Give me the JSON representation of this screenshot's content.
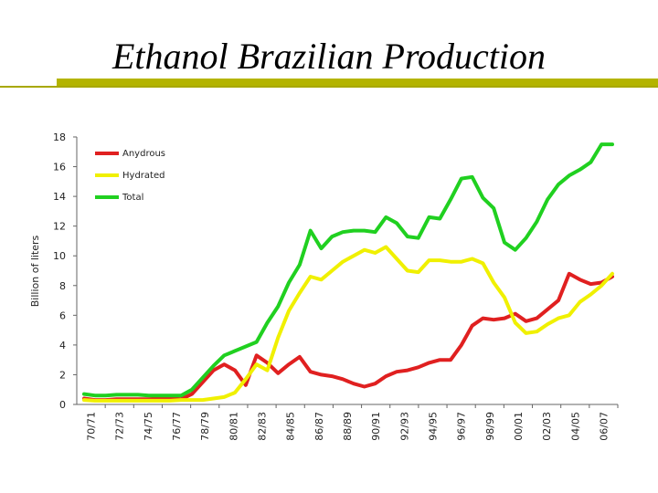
{
  "chart_data": {
    "type": "line",
    "title": "Ethanol Brazilian Production",
    "ylabel": "Billion of liters",
    "xlabel": "",
    "ylim": [
      0,
      18
    ],
    "yticks": [
      "0",
      "2",
      "4",
      "6",
      "8",
      "10",
      "12",
      "14",
      "16",
      "18"
    ],
    "xtick_labels": [
      "70/71",
      "72/73",
      "74/75",
      "76/77",
      "78/79",
      "80/81",
      "82/83",
      "84/85",
      "86/87",
      "88/89",
      "90/91",
      "92/93",
      "94/95",
      "96/97",
      "98/99",
      "00/01",
      "02/03",
      "04/05",
      "06/07"
    ],
    "grid": false,
    "legend_position": "top-left",
    "series": [
      {
        "name": "Anydrous",
        "color": "#e02020",
        "values": [
          0.4,
          0.3,
          0.3,
          0.35,
          0.35,
          0.35,
          0.35,
          0.4,
          0.4,
          0.35,
          0.7,
          1.5,
          2.3,
          2.7,
          2.3,
          1.3,
          3.3,
          2.8,
          2.1,
          2.7,
          3.2,
          2.2,
          2.0,
          1.9,
          1.7,
          1.4,
          1.2,
          1.4,
          1.9,
          2.2,
          2.3,
          2.5,
          2.8,
          3.0,
          3.0,
          4.0,
          5.3,
          5.8,
          5.7,
          5.8,
          6.1,
          5.6,
          5.8,
          6.4,
          7.0,
          8.8,
          8.4,
          8.1,
          8.2,
          8.6
        ]
      },
      {
        "name": "Hydrated",
        "color": "#f0f000",
        "values": [
          0.3,
          0.25,
          0.25,
          0.25,
          0.25,
          0.25,
          0.25,
          0.25,
          0.25,
          0.3,
          0.3,
          0.3,
          0.4,
          0.5,
          0.8,
          1.7,
          2.7,
          2.3,
          4.5,
          6.3,
          7.5,
          8.6,
          8.4,
          9.0,
          9.6,
          10.0,
          10.4,
          10.2,
          10.6,
          9.8,
          9.0,
          8.9,
          9.7,
          9.7,
          9.6,
          9.6,
          9.8,
          9.5,
          8.2,
          7.2,
          5.5,
          4.8,
          4.9,
          5.4,
          5.8,
          6.0,
          6.9,
          7.4,
          8.0,
          8.8
        ]
      },
      {
        "name": "Total",
        "color": "#20d020",
        "values": [
          0.7,
          0.6,
          0.6,
          0.65,
          0.65,
          0.65,
          0.6,
          0.6,
          0.6,
          0.6,
          1.0,
          1.8,
          2.6,
          3.3,
          3.6,
          3.9,
          4.2,
          5.5,
          6.6,
          8.2,
          9.4,
          11.7,
          10.5,
          11.3,
          11.6,
          11.7,
          11.7,
          11.6,
          12.6,
          12.2,
          11.3,
          11.2,
          12.6,
          12.5,
          13.8,
          15.2,
          15.3,
          13.9,
          13.2,
          10.9,
          10.4,
          11.2,
          12.3,
          13.8,
          14.8,
          15.4,
          15.8,
          16.3,
          17.5,
          17.5
        ]
      }
    ]
  }
}
